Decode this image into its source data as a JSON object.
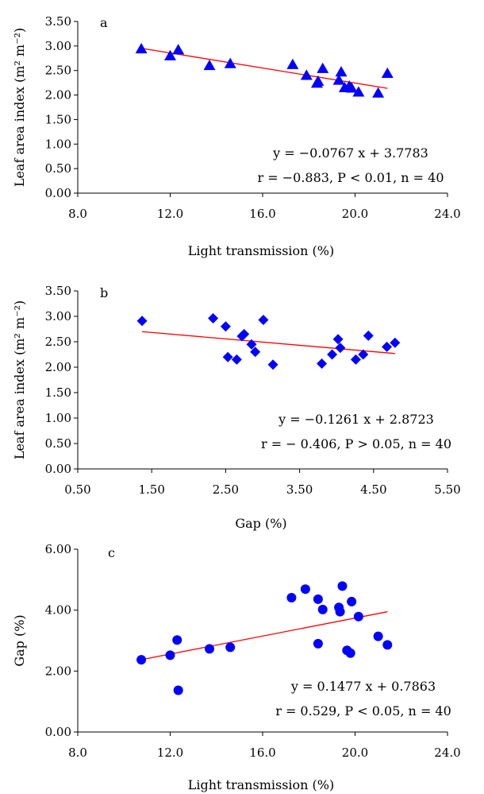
{
  "figure": {
    "marker_color": "#0000ff",
    "fit_color": "#ff0000",
    "axis_color": "#000000"
  },
  "chart_data": [
    {
      "type": "scatter",
      "panel_label": "a",
      "marker": "triangle",
      "xlabel": "Light transmission (%)",
      "ylabel": "Leaf area index (m² m⁻²)",
      "xlim": [
        8.0,
        24.0
      ],
      "ylim": [
        0.0,
        3.5
      ],
      "xticks": [
        "8.0",
        "12.0",
        "16.0",
        "20.0",
        "24.0"
      ],
      "yticks": [
        "0.00",
        "0.50",
        "1.00",
        "1.50",
        "2.00",
        "2.50",
        "3.00",
        "3.50"
      ],
      "points": [
        {
          "x": 10.75,
          "y": 2.94
        },
        {
          "x": 12.0,
          "y": 2.8
        },
        {
          "x": 12.35,
          "y": 2.92
        },
        {
          "x": 13.7,
          "y": 2.6
        },
        {
          "x": 14.6,
          "y": 2.64
        },
        {
          "x": 17.3,
          "y": 2.62
        },
        {
          "x": 17.9,
          "y": 2.4
        },
        {
          "x": 18.35,
          "y": 2.24
        },
        {
          "x": 18.4,
          "y": 2.28
        },
        {
          "x": 18.6,
          "y": 2.54
        },
        {
          "x": 19.3,
          "y": 2.3
        },
        {
          "x": 19.4,
          "y": 2.47
        },
        {
          "x": 19.55,
          "y": 2.15
        },
        {
          "x": 19.75,
          "y": 2.18
        },
        {
          "x": 19.85,
          "y": 2.14
        },
        {
          "x": 20.15,
          "y": 2.06
        },
        {
          "x": 21.0,
          "y": 2.04
        },
        {
          "x": 21.4,
          "y": 2.44
        }
      ],
      "fit": {
        "slope": -0.0767,
        "intercept": 3.7783,
        "x_range": [
          10.75,
          21.4
        ]
      },
      "equation": "y = −0.0767 x + 3.7783",
      "stats": "r = −0.883, P < 0.01, n = 40",
      "grid": false
    },
    {
      "type": "scatter",
      "panel_label": "b",
      "marker": "diamond",
      "xlabel": "Gap (%)",
      "ylabel": "Leaf area index (m² m⁻²)",
      "xlim": [
        0.5,
        5.5
      ],
      "ylim": [
        0.0,
        3.5
      ],
      "xticks": [
        "0.50",
        "1.50",
        "2.50",
        "3.50",
        "4.50",
        "5.50"
      ],
      "yticks": [
        "0.00",
        "0.50",
        "1.00",
        "1.50",
        "2.00",
        "2.50",
        "3.00",
        "3.50"
      ],
      "points": [
        {
          "x": 1.37,
          "y": 2.91
        },
        {
          "x": 2.33,
          "y": 2.96
        },
        {
          "x": 2.5,
          "y": 2.8
        },
        {
          "x": 2.53,
          "y": 2.2
        },
        {
          "x": 2.65,
          "y": 2.15
        },
        {
          "x": 2.72,
          "y": 2.61
        },
        {
          "x": 2.75,
          "y": 2.65
        },
        {
          "x": 2.85,
          "y": 2.45
        },
        {
          "x": 2.9,
          "y": 2.3
        },
        {
          "x": 3.01,
          "y": 2.93
        },
        {
          "x": 3.14,
          "y": 2.05
        },
        {
          "x": 3.8,
          "y": 2.07
        },
        {
          "x": 3.94,
          "y": 2.25
        },
        {
          "x": 4.02,
          "y": 2.55
        },
        {
          "x": 4.05,
          "y": 2.38
        },
        {
          "x": 4.26,
          "y": 2.15
        },
        {
          "x": 4.36,
          "y": 2.25
        },
        {
          "x": 4.43,
          "y": 2.62
        },
        {
          "x": 4.68,
          "y": 2.4
        },
        {
          "x": 4.79,
          "y": 2.48
        }
      ],
      "fit": {
        "slope": -0.1261,
        "intercept": 2.8723,
        "x_range": [
          1.37,
          4.79
        ]
      },
      "equation": "y = −0.1261 x + 2.8723",
      "stats": "r = − 0.406, P > 0.05, n = 40",
      "grid": false
    },
    {
      "type": "scatter",
      "panel_label": "c",
      "marker": "circle",
      "xlabel": "Light transmission (%)",
      "ylabel": "Gap (%)",
      "xlim": [
        8.0,
        24.0
      ],
      "ylim": [
        0.0,
        6.0
      ],
      "xticks": [
        "8.0",
        "12.0",
        "16.0",
        "20.0",
        "24.0"
      ],
      "yticks": [
        "0.00",
        "2.00",
        "4.00",
        "6.00"
      ],
      "points": [
        {
          "x": 10.75,
          "y": 2.37
        },
        {
          "x": 12.0,
          "y": 2.52
        },
        {
          "x": 12.3,
          "y": 3.02
        },
        {
          "x": 12.35,
          "y": 1.37
        },
        {
          "x": 13.7,
          "y": 2.73
        },
        {
          "x": 14.6,
          "y": 2.78
        },
        {
          "x": 17.25,
          "y": 4.41
        },
        {
          "x": 17.85,
          "y": 4.69
        },
        {
          "x": 18.4,
          "y": 2.9
        },
        {
          "x": 18.4,
          "y": 4.36
        },
        {
          "x": 18.6,
          "y": 4.02
        },
        {
          "x": 19.3,
          "y": 4.09
        },
        {
          "x": 19.35,
          "y": 3.95
        },
        {
          "x": 19.45,
          "y": 4.79
        },
        {
          "x": 19.65,
          "y": 2.68
        },
        {
          "x": 19.8,
          "y": 2.59
        },
        {
          "x": 19.85,
          "y": 4.28
        },
        {
          "x": 20.15,
          "y": 3.79
        },
        {
          "x": 21.0,
          "y": 3.14
        },
        {
          "x": 21.4,
          "y": 2.86
        }
      ],
      "fit": {
        "slope": 0.1477,
        "intercept": 0.7863,
        "x_range": [
          10.75,
          21.4
        ]
      },
      "equation": "y = 0.1477 x + 0.7863",
      "stats": "r = 0.529, P < 0.05, n = 40",
      "grid": false
    }
  ]
}
